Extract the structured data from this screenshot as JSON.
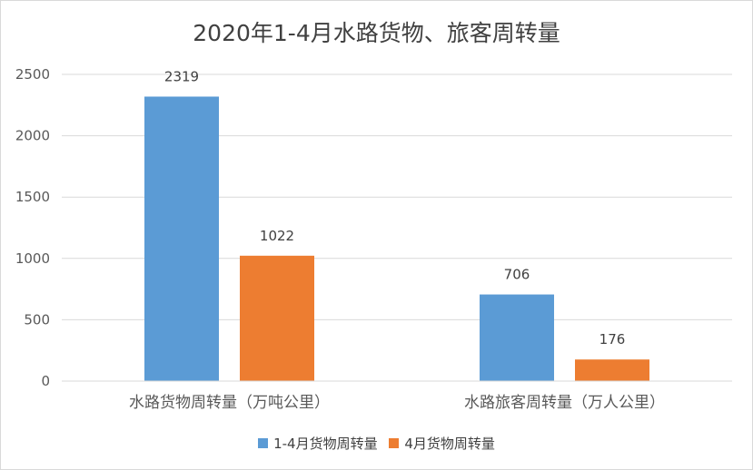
{
  "chart_data": {
    "type": "bar",
    "title": "2020年1-4月水路货物、旅客周转量",
    "categories": [
      "水路货物周转量（万吨公里）",
      "水路旅客周转量（万人公里）"
    ],
    "series": [
      {
        "name": "1-4月货物周转量",
        "values": [
          2319,
          706
        ],
        "color": "#5b9bd5"
      },
      {
        "name": "4月货物周转量",
        "values": [
          1022,
          176
        ],
        "color": "#ed7d31"
      }
    ],
    "ylim": [
      0,
      2500
    ],
    "yticks": [
      0,
      500,
      1000,
      1500,
      2000,
      2500
    ],
    "grid": true,
    "legend_position": "bottom",
    "data_labels": true
  }
}
